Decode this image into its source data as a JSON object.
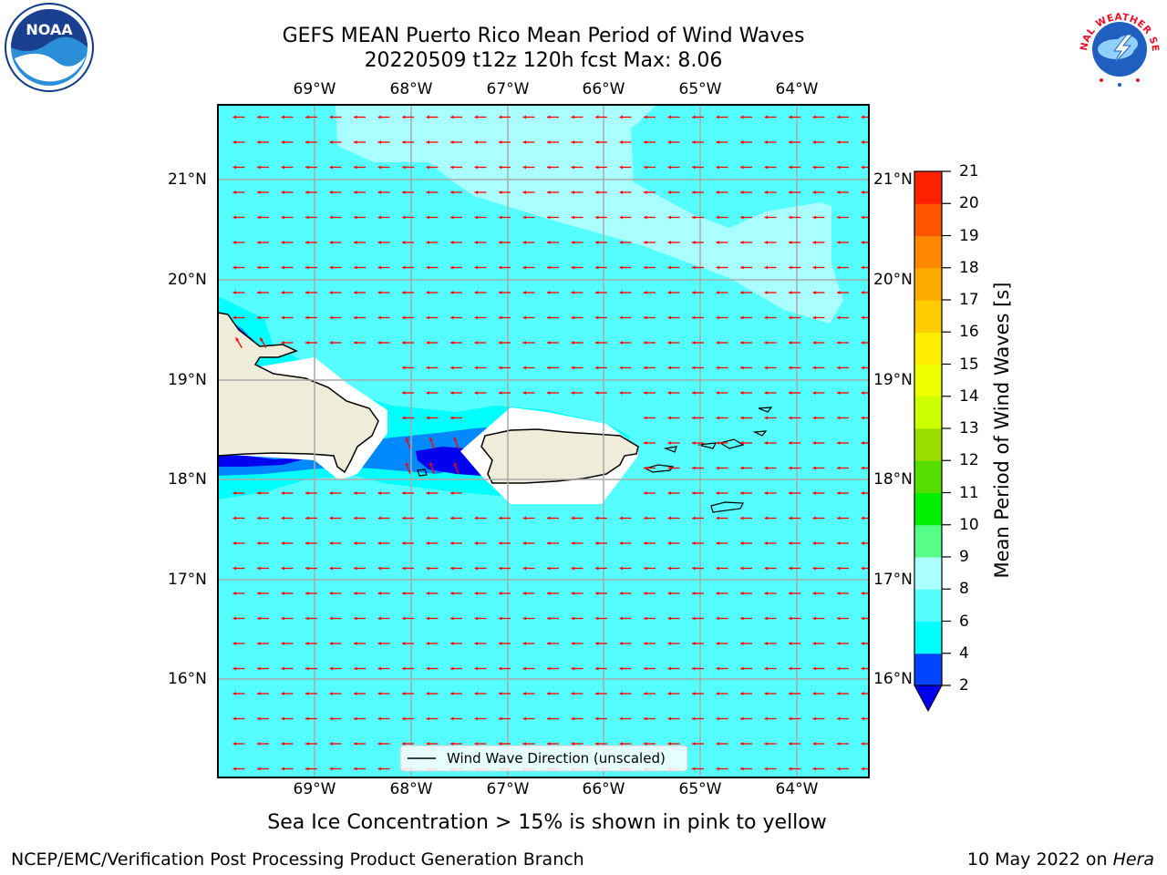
{
  "title_line1": "GEFS MEAN Puerto Rico Mean Period of Wind Waves",
  "title_line2": "20220509 t12z 120h fcst   Max: 8.06",
  "subtitle": "Sea Ice Concentration > 15% is shown in pink to yellow",
  "footer_left": "NCEP/EMC/Verification Post Processing Product Generation Branch",
  "footer_right_date": "10 May 2022 on",
  "footer_right_host": "Hera",
  "legend_label": "Wind Wave Direction (unscaled)",
  "logo_left": {
    "name": "noaa-logo",
    "text": "NOAA"
  },
  "logo_right": {
    "name": "nws-logo",
    "text": "NATIONAL WEATHER SERVICE"
  },
  "lon_ticks": [
    "69°W",
    "68°W",
    "67°W",
    "66°W",
    "65°W",
    "64°W"
  ],
  "lat_ticks": [
    "21°N",
    "20°N",
    "19°N",
    "18°N",
    "17°N",
    "16°N"
  ],
  "colorbar": {
    "label": "Mean Period of Wind Waves [s]",
    "ticks": [
      "2",
      "4",
      "6",
      "8",
      "9",
      "10",
      "11",
      "12",
      "13",
      "14",
      "15",
      "16",
      "17",
      "18",
      "19",
      "20",
      "21"
    ],
    "colors": [
      "#0044ff",
      "#00ffff",
      "#55ffff",
      "#aaffff",
      "#55ff88",
      "#00ee00",
      "#55dd00",
      "#99dd00",
      "#ccff00",
      "#eeff00",
      "#ffee00",
      "#ffcc00",
      "#ffaa00",
      "#ff8800",
      "#ff5500",
      "#ff2200",
      "#ff0000"
    ],
    "under_color": "#0000ee"
  },
  "colors": {
    "ocean_main": "#55ffff",
    "ocean_light": "#aaffff",
    "ocean_cyan": "#00ffff",
    "shallow_blue": "#0088ff",
    "deep_blue": "#0000ee",
    "land": "#efecd9",
    "arrow": "#ff0000",
    "grid": "#aaaaaa"
  }
}
